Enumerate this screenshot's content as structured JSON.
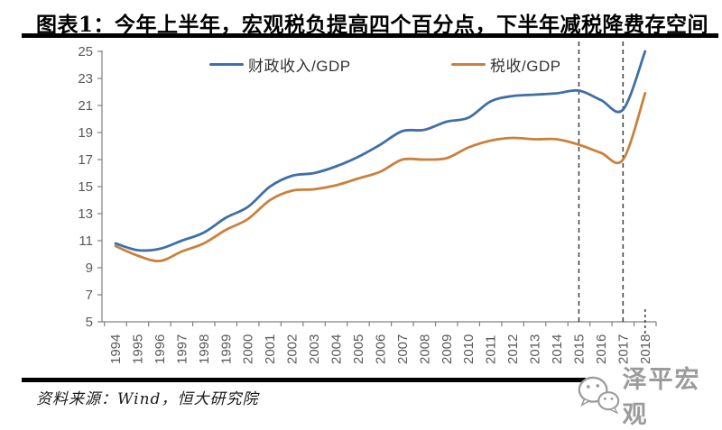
{
  "page": {
    "title": "图表1：今年上半年，宏观税负提高四个百分点，下半年减税降费存空间",
    "source": "资料来源：Wind，恒大研究院",
    "watermark_text": "泽平宏观"
  },
  "colors": {
    "axis": "#808080",
    "tick_label": "#595959",
    "dashed_line": "#3f3f3f",
    "rule": "#000000",
    "watermark": "#9b9b9b"
  },
  "chart_data": {
    "type": "line",
    "x": [
      1994,
      1995,
      1996,
      1997,
      1998,
      1999,
      2000,
      2001,
      2002,
      2003,
      2004,
      2005,
      2006,
      2007,
      2008,
      2009,
      2010,
      2011,
      2012,
      2013,
      2014,
      2015,
      2016,
      2017,
      2018
    ],
    "series": [
      {
        "name": "财政收入/GDP",
        "color": "#3f6fa6",
        "values": [
          10.8,
          10.3,
          10.4,
          11.0,
          11.6,
          12.7,
          13.5,
          15.0,
          15.8,
          16.0,
          16.5,
          17.2,
          18.1,
          19.1,
          19.2,
          19.8,
          20.1,
          21.3,
          21.7,
          21.8,
          21.9,
          22.1,
          21.4,
          20.7,
          25.0
        ]
      },
      {
        "name": "税收/GDP",
        "color": "#c9813c",
        "values": [
          10.6,
          9.9,
          9.5,
          10.2,
          10.8,
          11.8,
          12.6,
          14.0,
          14.7,
          14.8,
          15.1,
          15.6,
          16.1,
          17.0,
          17.0,
          17.1,
          17.9,
          18.4,
          18.6,
          18.5,
          18.5,
          18.1,
          17.5,
          17.0,
          21.9
        ]
      }
    ],
    "ylim": [
      5,
      25
    ],
    "yticks": [
      5,
      7,
      9,
      11,
      13,
      15,
      17,
      19,
      21,
      23,
      25
    ],
    "vlines": [
      2015,
      2017
    ],
    "vline_stub": 2018,
    "legend_position": "top",
    "grid": false
  }
}
